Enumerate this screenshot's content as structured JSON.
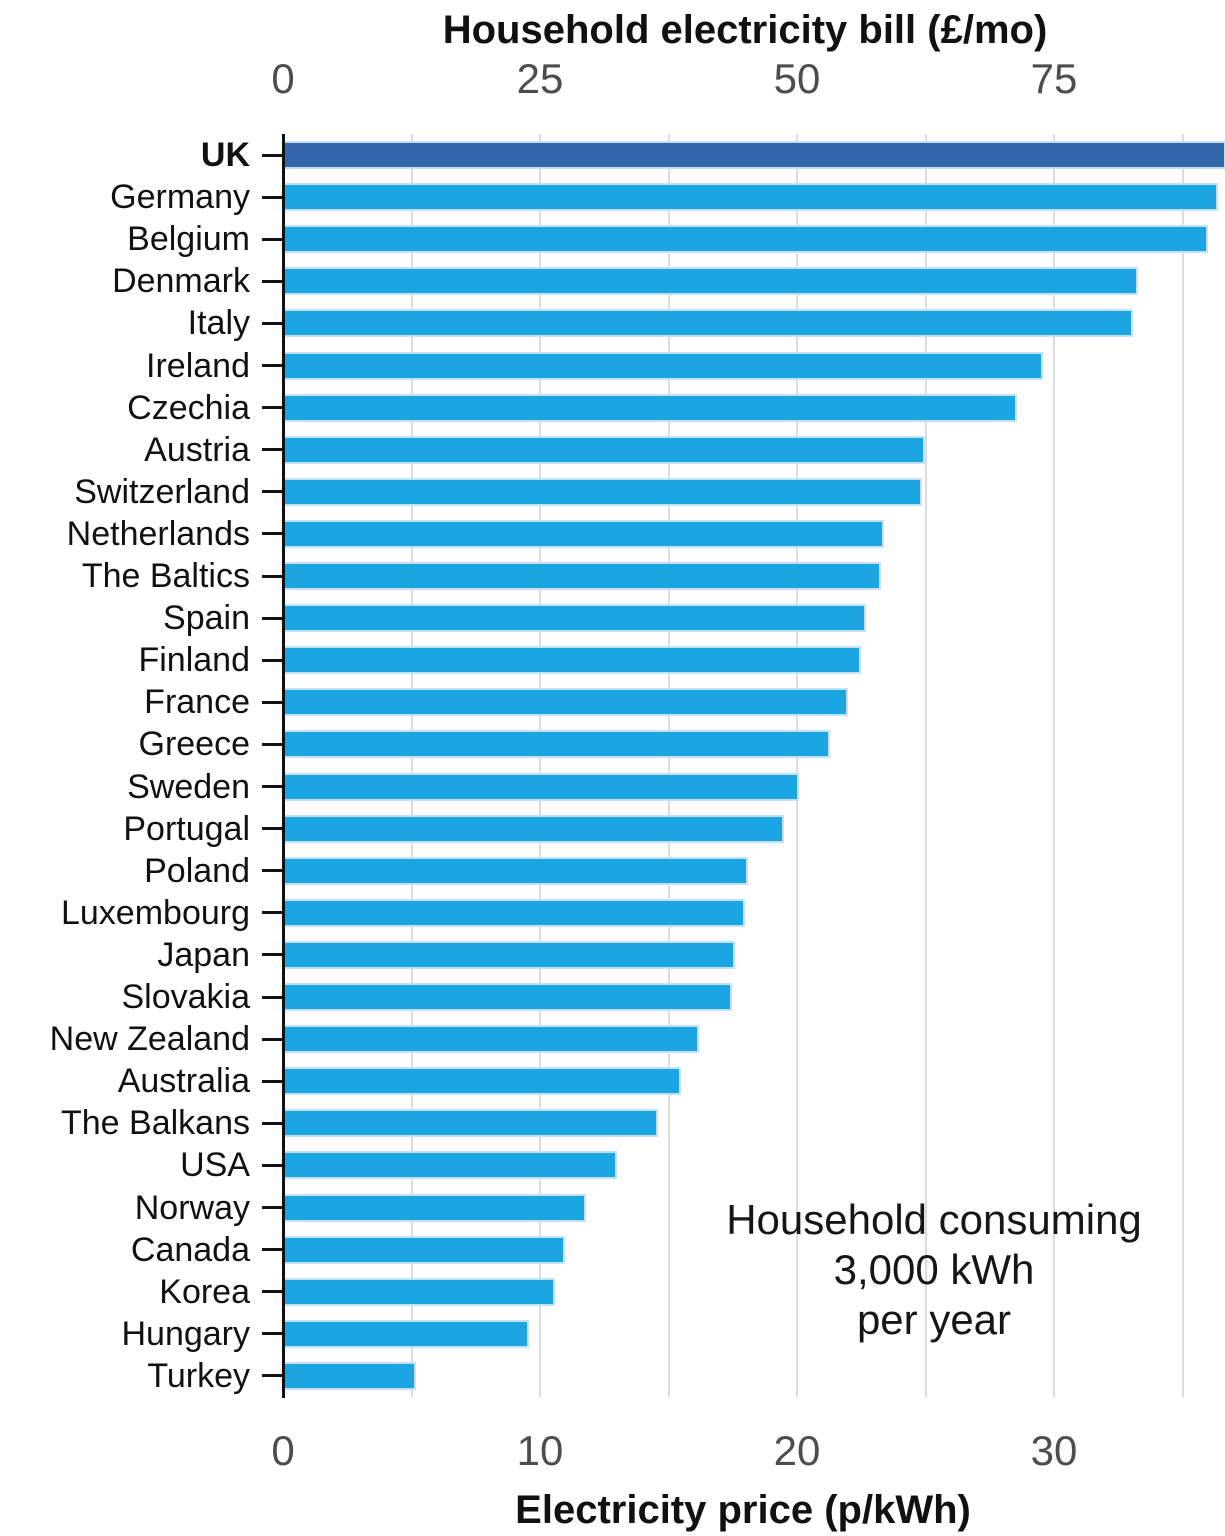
{
  "chart_data": {
    "type": "bar",
    "orientation": "horizontal",
    "top_axis": {
      "label": "Household electricity bill (£/mo)",
      "ticks": [
        0,
        25,
        50,
        75
      ],
      "range": [
        0,
        91.5
      ]
    },
    "bottom_axis": {
      "label": "Electricity price (p/kWh)",
      "ticks": [
        0,
        10,
        20,
        30
      ],
      "range": [
        0,
        36.6
      ]
    },
    "gridline_values_p_per_kwh": [
      5,
      10,
      15,
      20,
      25,
      30,
      35
    ],
    "categories": [
      "UK",
      "Germany",
      "Belgium",
      "Denmark",
      "Italy",
      "Ireland",
      "Czechia",
      "Austria",
      "Switzerland",
      "Netherlands",
      "The Baltics",
      "Spain",
      "Finland",
      "France",
      "Greece",
      "Sweden",
      "Portugal",
      "Poland",
      "Luxembourg",
      "Japan",
      "Slovakia",
      "New Zealand",
      "Australia",
      "The Balkans",
      "USA",
      "Norway",
      "Canada",
      "Korea",
      "Hungary",
      "Turkey"
    ],
    "values": [
      36.6,
      36.3,
      35.9,
      33.2,
      33.0,
      29.5,
      28.5,
      24.9,
      24.8,
      23.3,
      23.2,
      22.6,
      22.4,
      21.9,
      21.2,
      20.0,
      19.4,
      18.0,
      17.9,
      17.5,
      17.4,
      16.1,
      15.4,
      14.5,
      12.9,
      11.7,
      10.9,
      10.5,
      9.5,
      5.1
    ],
    "highlight_category": "UK",
    "colors": {
      "bar": "#1ba5e2",
      "highlight_bar": "#3367ac",
      "grid": "#dcdcdc",
      "axis_line": "#111111",
      "tick_label": "#4d4d4d",
      "text": "#111111"
    },
    "legend": "none",
    "grid": "vertical minor lines every 5 p/kWh",
    "annotation": [
      "Household consuming",
      "3,000 kWh",
      "per year"
    ]
  }
}
